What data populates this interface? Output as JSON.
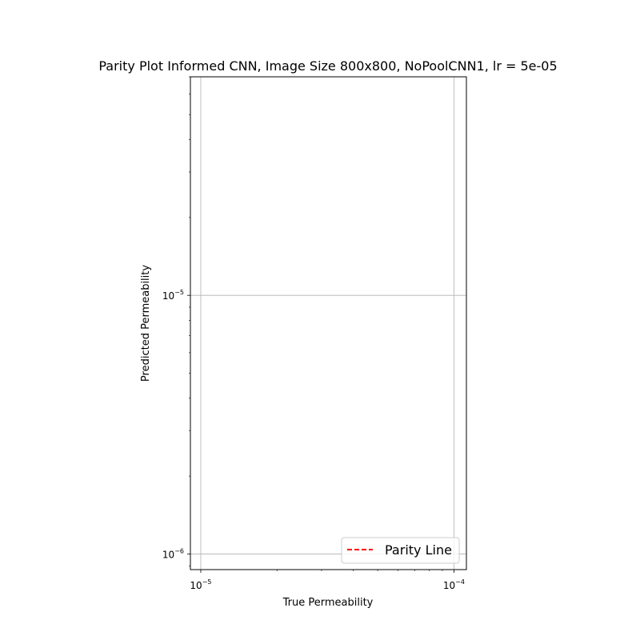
{
  "chart_data": {
    "type": "scatter",
    "title": "Parity Plot Informed CNN, Image Size 800x800, NoPoolCNN1, lr = 5e-05",
    "xlabel": "True Permeability",
    "ylabel": "Predicted Permeability",
    "xscale": "log",
    "yscale": "log",
    "xlim": [
      9.1e-06,
      0.000112
    ],
    "ylim": [
      8.7e-07,
      7e-05
    ],
    "grid": true,
    "x_ticks": [
      {
        "value": 1e-05,
        "base": "10",
        "exp": "−5"
      },
      {
        "value": 0.0001,
        "base": "10",
        "exp": "−4"
      }
    ],
    "y_ticks": [
      {
        "value": 1e-06,
        "base": "10",
        "exp": "−6"
      },
      {
        "value": 1e-05,
        "base": "10",
        "exp": "−5"
      }
    ],
    "series": [
      {
        "name": "Parity Line",
        "style": "dashed",
        "color": "#ff0000",
        "x": [],
        "y": []
      }
    ],
    "legend": {
      "location": "lower-right",
      "entries": [
        "Parity Line"
      ]
    }
  }
}
